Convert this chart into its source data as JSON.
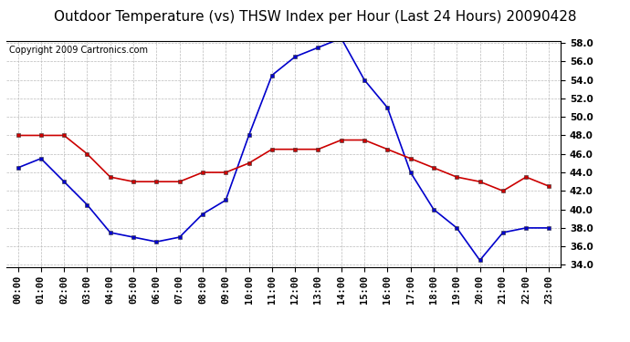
{
  "title": "Outdoor Temperature (vs) THSW Index per Hour (Last 24 Hours) 20090428",
  "copyright": "Copyright 2009 Cartronics.com",
  "hours": [
    "00:00",
    "01:00",
    "02:00",
    "03:00",
    "04:00",
    "05:00",
    "06:00",
    "07:00",
    "08:00",
    "09:00",
    "10:00",
    "11:00",
    "12:00",
    "13:00",
    "14:00",
    "15:00",
    "16:00",
    "17:00",
    "18:00",
    "19:00",
    "20:00",
    "21:00",
    "22:00",
    "23:00"
  ],
  "temp": [
    48.0,
    48.0,
    48.0,
    46.0,
    43.5,
    43.0,
    43.0,
    43.0,
    44.0,
    44.0,
    45.0,
    46.5,
    46.5,
    46.5,
    47.5,
    47.5,
    46.5,
    45.5,
    44.5,
    43.5,
    43.0,
    42.0,
    43.5,
    42.5
  ],
  "thsw": [
    44.5,
    45.5,
    43.0,
    40.5,
    37.5,
    37.0,
    36.5,
    37.0,
    39.5,
    41.0,
    48.0,
    54.5,
    56.5,
    57.5,
    58.5,
    54.0,
    51.0,
    44.0,
    40.0,
    38.0,
    34.5,
    37.5,
    38.0,
    38.0
  ],
  "temp_color": "#cc0000",
  "thsw_color": "#0000cc",
  "ylim_min": 34.0,
  "ylim_max": 58.0,
  "yticks": [
    34.0,
    36.0,
    38.0,
    40.0,
    42.0,
    44.0,
    46.0,
    48.0,
    50.0,
    52.0,
    54.0,
    56.0,
    58.0
  ],
  "bg_color": "#ffffff",
  "grid_color": "#bbbbbb",
  "title_fontsize": 11,
  "copyright_fontsize": 7,
  "tick_fontsize": 7.5
}
